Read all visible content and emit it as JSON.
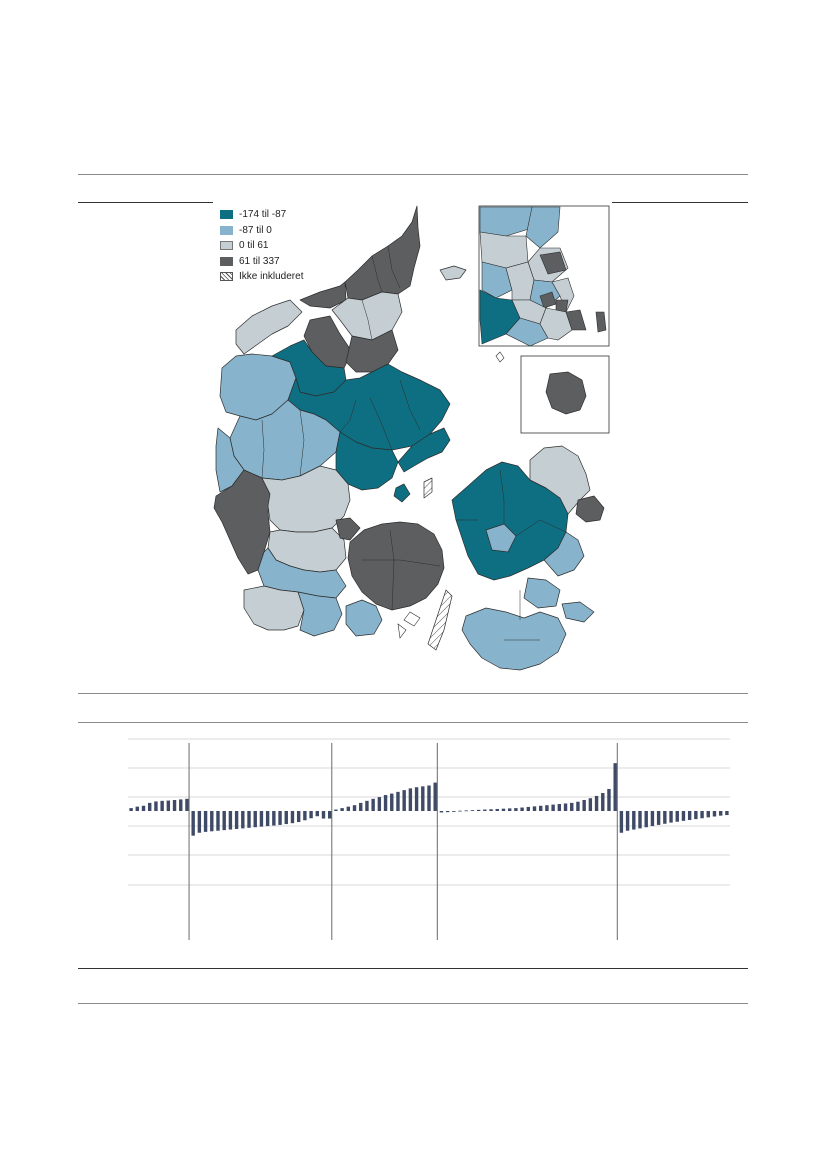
{
  "legend": {
    "items": [
      {
        "label": "-174 til -87",
        "color": "#0e6f82"
      },
      {
        "label": "-87 til 0",
        "color": "#87b4cc"
      },
      {
        "label": "0 til 61",
        "color": "#c5cfd3"
      },
      {
        "label": "61 til 337",
        "color": "#5d5e60"
      },
      {
        "label": "Ikke inkluderet",
        "color": "hatched"
      }
    ]
  },
  "map": {
    "regions_shown": [
      "Nordjylland",
      "Midtjylland",
      "Syddanmark",
      "Fyn",
      "Sjælland",
      "Hovedstaden",
      "Bornholm"
    ],
    "insets": [
      "hovedstadsområdet",
      "bornholm"
    ]
  },
  "chart_data": {
    "type": "bar",
    "group_count": 5,
    "gridlines": true,
    "axis_labels_visible": false,
    "series": [
      {
        "name": "",
        "color": "#3f4a66",
        "groups": [
          {
            "values": [
              10,
              15,
              18,
              28,
              33,
              35,
              36,
              38,
              40,
              42
            ]
          },
          {
            "values": [
              -85,
              -75,
              -72,
              -70,
              -68,
              -66,
              -64,
              -62,
              -60,
              -58,
              -56,
              -54,
              -52,
              -50,
              -48,
              -45,
              -42,
              -38,
              -32,
              -25,
              -18,
              -26,
              -26
            ]
          },
          {
            "values": [
              5,
              10,
              15,
              20,
              28,
              35,
              42,
              48,
              55,
              60,
              66,
              72,
              78,
              82,
              85,
              88,
              98
            ]
          },
          {
            "values": [
              -5,
              -4,
              -3,
              1,
              2,
              3,
              4,
              5,
              6,
              7,
              8,
              9,
              10,
              12,
              14,
              16,
              18,
              20,
              22,
              24,
              26,
              28,
              32,
              38,
              44,
              52,
              62,
              76,
              165
            ]
          },
          {
            "values": [
              -75,
              -68,
              -64,
              -60,
              -56,
              -52,
              -48,
              -44,
              -40,
              -37,
              -34,
              -31,
              -28,
              -25,
              -22,
              -19,
              -16,
              -14
            ]
          }
        ]
      }
    ]
  }
}
